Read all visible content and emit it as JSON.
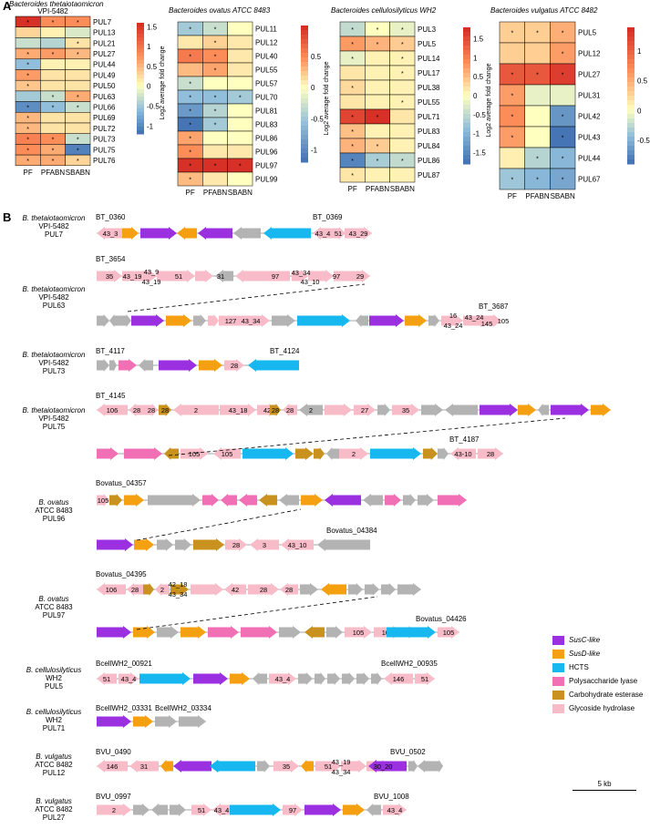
{
  "panel_a": {
    "label": "A",
    "colorbar_label": "Log2 average fold change",
    "heatmaps": [
      {
        "title": "Bacteroides thetaiotaomicron",
        "subtitle": "VPI-5482",
        "columns": [
          "PF",
          "PFABN",
          "SBABN"
        ],
        "rows": [
          "PUL7",
          "PUL13",
          "PUL21",
          "PUL27",
          "PUL44",
          "PUL49",
          "PUL50",
          "PUL63",
          "PUL66",
          "PUL69",
          "PUL72",
          "PUL73",
          "PUL75",
          "PUL76"
        ],
        "values": [
          [
            1.6,
            0.8,
            0.8
          ],
          [
            0.3,
            0.1,
            -0.2
          ],
          [
            -0.3,
            -0.4,
            0.2
          ],
          [
            0.6,
            0.7,
            0.5
          ],
          [
            -0.6,
            0.1,
            0.1
          ],
          [
            0.7,
            0.2,
            0.2
          ],
          [
            0.4,
            0.2,
            0.2
          ],
          [
            -0.5,
            -0.3,
            0.6
          ],
          [
            -1.0,
            -0.6,
            -0.3
          ],
          [
            0.5,
            0.2,
            0.2
          ],
          [
            0.5,
            0.2,
            0.2
          ],
          [
            0.9,
            0.8,
            -0.3
          ],
          [
            0.8,
            0.6,
            -1.1
          ],
          [
            0.6,
            0.6,
            0.3
          ]
        ],
        "stars": [
          [
            1,
            1,
            1
          ],
          [
            0,
            0,
            0
          ],
          [
            0,
            0,
            1
          ],
          [
            1,
            1,
            1
          ],
          [
            1,
            0,
            0
          ],
          [
            1,
            0,
            0
          ],
          [
            1,
            0,
            0
          ],
          [
            0,
            1,
            1
          ],
          [
            1,
            1,
            1
          ],
          [
            1,
            0,
            0
          ],
          [
            1,
            0,
            0
          ],
          [
            1,
            1,
            1
          ],
          [
            1,
            1,
            1
          ],
          [
            1,
            1,
            1
          ]
        ],
        "scale_ticks": [
          "1.5",
          "1",
          "0.5",
          "0",
          "-0.5",
          "-1"
        ],
        "vmin": -1.2,
        "vmax": 1.6
      },
      {
        "title": "Bacteroides ovatus",
        "subtitle": "ATCC 8483",
        "columns": [
          "PF",
          "PFABN",
          "SBABN"
        ],
        "rows": [
          "PUL11",
          "PUL12",
          "PUL40",
          "PUL55",
          "PUL57",
          "PUL70",
          "PUL81",
          "PUL83",
          "PUL86",
          "PUL96",
          "PUL97",
          "PUL99"
        ],
        "values": [
          [
            -0.5,
            -0.3,
            0.0
          ],
          [
            0.1,
            0.2,
            0.1
          ],
          [
            0.6,
            0.5,
            0.1
          ],
          [
            0.3,
            0.4,
            0.1
          ],
          [
            -0.3,
            0.0,
            0.0
          ],
          [
            -0.6,
            -0.6,
            -0.5
          ],
          [
            -0.9,
            -0.4,
            0.0
          ],
          [
            -1.2,
            -0.5,
            0.0
          ],
          [
            0.4,
            0.0,
            0.0
          ],
          [
            0.5,
            0.1,
            0.1
          ],
          [
            1.2,
            1.0,
            1.3
          ],
          [
            0.3,
            0.1,
            0.0
          ]
        ],
        "stars": [
          [
            1,
            1,
            0
          ],
          [
            0,
            1,
            0
          ],
          [
            1,
            1,
            0
          ],
          [
            0,
            1,
            0
          ],
          [
            1,
            0,
            0
          ],
          [
            1,
            1,
            1
          ],
          [
            1,
            1,
            0
          ],
          [
            1,
            1,
            0
          ],
          [
            1,
            0,
            0
          ],
          [
            1,
            0,
            0
          ],
          [
            1,
            1,
            1
          ],
          [
            1,
            0,
            0
          ]
        ],
        "scale_ticks": [
          "0.5",
          "0",
          "-0.5",
          "-1"
        ],
        "vmin": -1.2,
        "vmax": 1.0
      },
      {
        "title": "Bacteroides cellulosilyticus",
        "subtitle": "WH2",
        "columns": [
          "PF",
          "PFABN",
          "SBABN"
        ],
        "rows": [
          "PUL3",
          "PUL5",
          "PUL14",
          "PUL17",
          "PUL38",
          "PUL55",
          "PUL71",
          "PUL83",
          "PUL84",
          "PUL86",
          "PUL87"
        ],
        "values": [
          [
            -0.5,
            0.0,
            -0.2
          ],
          [
            0.8,
            0.6,
            0.4
          ],
          [
            -0.2,
            0.1,
            0.1
          ],
          [
            0.2,
            0.1,
            0.1
          ],
          [
            0.3,
            0.1,
            0.1
          ],
          [
            0.2,
            0.1,
            0.1
          ],
          [
            1.6,
            1.8,
            0.2
          ],
          [
            0.5,
            0.1,
            0.1
          ],
          [
            0.6,
            0.4,
            0.1
          ],
          [
            -1.6,
            -0.7,
            -0.5
          ],
          [
            0.2,
            0.1,
            0.1
          ]
        ],
        "stars": [
          [
            1,
            1,
            1
          ],
          [
            1,
            1,
            1
          ],
          [
            1,
            0,
            1
          ],
          [
            0,
            0,
            1
          ],
          [
            1,
            0,
            0
          ],
          [
            0,
            0,
            1
          ],
          [
            1,
            1,
            0
          ],
          [
            1,
            0,
            0
          ],
          [
            1,
            1,
            0
          ],
          [
            1,
            1,
            1
          ],
          [
            1,
            0,
            0
          ]
        ],
        "scale_ticks": [
          "1.5",
          "1",
          "0.5",
          "0",
          "-0.5",
          "-1",
          "-1.5"
        ],
        "vmin": -1.8,
        "vmax": 1.8
      },
      {
        "title": "Bacteroides vulgatus",
        "subtitle": "ATCC 8482",
        "columns": [
          "PF",
          "PFABN",
          "SBABN"
        ],
        "rows": [
          "PUL5",
          "PUL12",
          "PUL27",
          "PUL31",
          "PUL42",
          "PUL43",
          "PUL44",
          "PUL67"
        ],
        "values": [
          [
            0.3,
            0.3,
            0.5
          ],
          [
            0.3,
            0.3,
            0.6
          ],
          [
            1.1,
            1.1,
            1.3
          ],
          [
            0.6,
            -0.1,
            -0.1
          ],
          [
            0.7,
            0.0,
            -0.7
          ],
          [
            0.6,
            0.0,
            -0.9
          ],
          [
            0.1,
            -0.3,
            -0.5
          ],
          [
            -0.4,
            -0.5,
            -0.6
          ]
        ],
        "stars": [
          [
            1,
            1,
            1
          ],
          [
            0,
            0,
            1
          ],
          [
            1,
            1,
            1
          ],
          [
            1,
            0,
            0
          ],
          [
            1,
            0,
            1
          ],
          [
            1,
            0,
            1
          ],
          [
            0,
            1,
            1
          ],
          [
            1,
            1,
            1
          ]
        ],
        "scale_ticks": [
          "1",
          "0.5",
          "0",
          "-0.5"
        ],
        "vmin": -0.9,
        "vmax": 1.4
      }
    ]
  },
  "panel_b": {
    "label": "B",
    "colors": {
      "susc": "#9b30e0",
      "susd": "#f5a011",
      "hcts": "#16b8ef",
      "pl": "#f06fb5",
      "ce": "#c9921e",
      "gh": "#f8bcc9",
      "other": "#b3b3b3"
    },
    "legend": [
      {
        "key": "susc",
        "label": "SusC-like",
        "italic_part": "SusC"
      },
      {
        "key": "susd",
        "label": "SusD-like",
        "italic_part": "SusD"
      },
      {
        "key": "hcts",
        "label": "HCTS",
        "italic_part": ""
      },
      {
        "key": "pl",
        "label": "Polysaccharide lyase",
        "italic_part": ""
      },
      {
        "key": "ce",
        "label": "Carbohydrate esterase",
        "italic_part": ""
      },
      {
        "key": "gh",
        "label": "Glycoside hydrolase",
        "italic_part": ""
      }
    ],
    "scale_bar": "5 kb",
    "loci": [
      {
        "species": "B. thetaiotaomicron",
        "strain": "VPI-5482",
        "pul": "PUL7"
      },
      {
        "species": "B. thetaiotaomicron",
        "strain": "VPI-5482",
        "pul": "PUL63"
      },
      {
        "species": "B. thetaiotaomicron",
        "strain": "VPI-5482",
        "pul": "PUL73"
      },
      {
        "species": "B. thetaiotaomicron",
        "strain": "VPI-5482",
        "pul": "PUL75"
      },
      {
        "species": "B. ovatus",
        "strain": "ATCC 8483",
        "pul": "PUL96"
      },
      {
        "species": "B. ovatus",
        "strain": "ATCC 8483",
        "pul": "PUL97"
      },
      {
        "species": "B. cellulosilyticus",
        "strain": "WH2",
        "pul": "PUL5"
      },
      {
        "species": "B. cellulosilyticus",
        "strain": "WH2",
        "pul": "PUL71"
      },
      {
        "species": "B. vulgatus",
        "strain": "ATCC 8482",
        "pul": "PUL12"
      },
      {
        "species": "B. vulgatus",
        "strain": "ATCC 8482",
        "pul": "PUL27"
      }
    ],
    "gene_ids": [
      "BT_0360",
      "BT_0369",
      "BT_3654",
      "BT_3687",
      "BT_4117",
      "BT_4124",
      "BT_4145",
      "BT_4187",
      "Bovatus_04357",
      "Bovatus_04384",
      "Bovatus_04395",
      "Bovatus_04426",
      "BcellWH2_00921",
      "BcellWH2_00935",
      "BcellWH2_03331",
      "BcellWH2_03334",
      "BVU_0490",
      "BVU_0502",
      "BVU_0997",
      "BVU_1008"
    ],
    "gene_labels": [
      "43_3",
      "43_4",
      "51",
      "43_29",
      "35",
      "43_19",
      "43_9",
      "43_19",
      "51",
      "31",
      "97",
      "43_34",
      "43_10",
      "97",
      "29",
      "127",
      "43_34",
      "16",
      "43_24",
      "43_24",
      "145",
      "105",
      "28",
      "106",
      "28",
      "28",
      "28",
      "2",
      "43_18",
      "42",
      "28",
      "28",
      "2",
      "27",
      "35",
      "105",
      "105",
      "2",
      "43-10",
      "28",
      "105",
      "28",
      "3",
      "43_10",
      "106",
      "28",
      "2",
      "42_18",
      "43_34",
      "42",
      "28",
      "28",
      "105",
      "105",
      "105",
      "51",
      "43_4",
      "43_4",
      "146",
      "51",
      "146",
      "31",
      "35",
      "51",
      "43_19",
      "43_34",
      "30_20",
      "2",
      "51",
      "43_4",
      "97",
      "43_4"
    ]
  }
}
